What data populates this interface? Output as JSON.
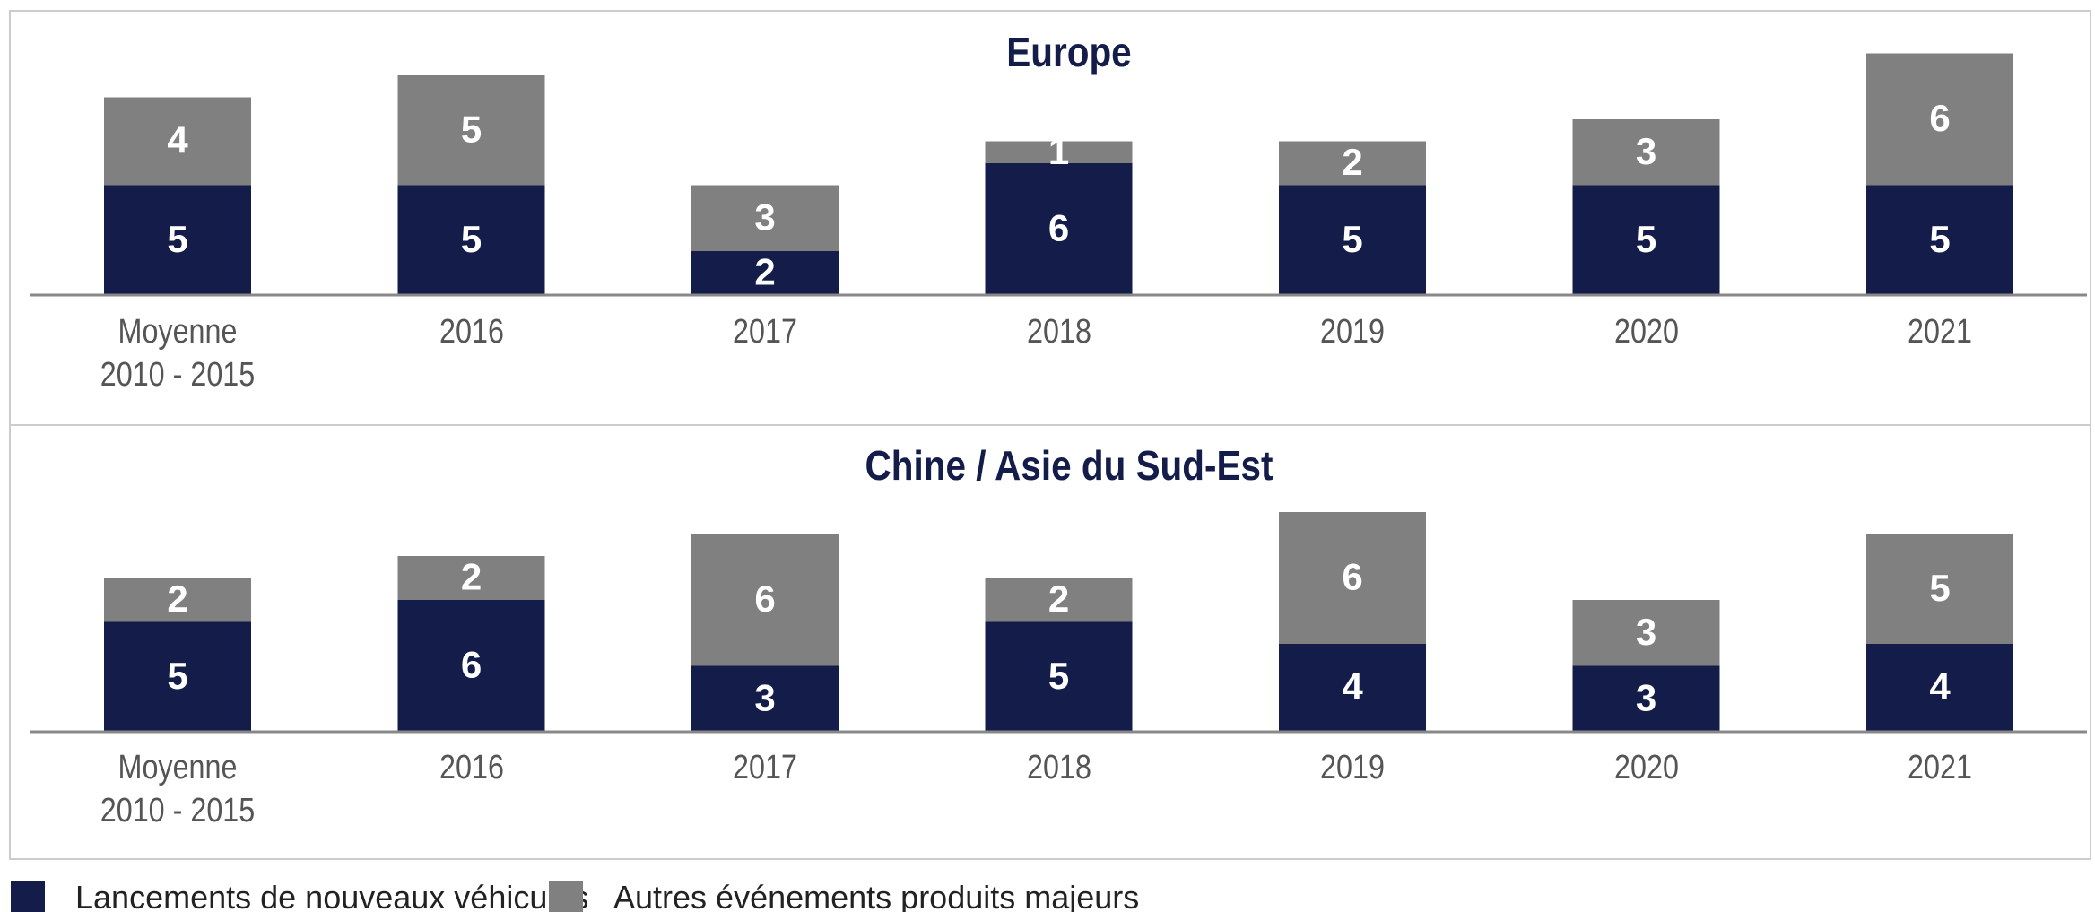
{
  "chart_data": [
    {
      "type": "stacked_bar",
      "title": "Europe",
      "categories": [
        "Moyenne\n2010 - 2015",
        "2016",
        "2017",
        "2018",
        "2019",
        "2020",
        "2021"
      ],
      "series": [
        {
          "name": "Lancements de nouveaux véhicules",
          "color": "#141c4a",
          "values": [
            5,
            5,
            2,
            6,
            5,
            5,
            5
          ]
        },
        {
          "name": "Autres événements produits majeurs",
          "color": "#808080",
          "values": [
            4,
            5,
            3,
            1,
            2,
            3,
            6
          ]
        }
      ]
    },
    {
      "type": "stacked_bar",
      "title": "Chine / Asie du Sud-Est",
      "categories": [
        "Moyenne\n2010 - 2015",
        "2016",
        "2017",
        "2018",
        "2019",
        "2020",
        "2021"
      ],
      "series": [
        {
          "name": "Lancements de nouveaux véhicules",
          "color": "#141c4a",
          "values": [
            5,
            6,
            3,
            5,
            4,
            3,
            4
          ]
        },
        {
          "name": "Autres événements produits majeurs",
          "color": "#808080",
          "values": [
            2,
            2,
            6,
            2,
            6,
            3,
            5
          ]
        }
      ]
    }
  ]
}
